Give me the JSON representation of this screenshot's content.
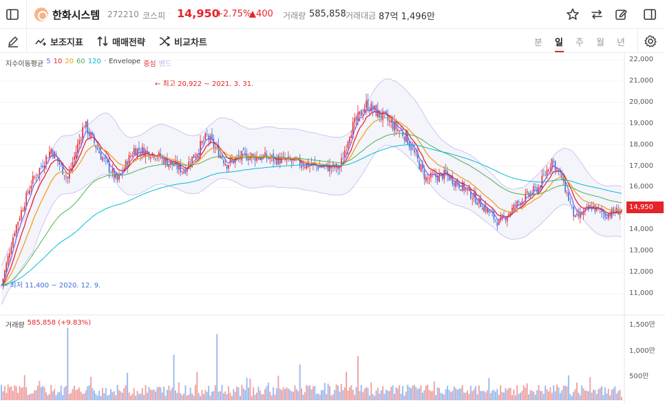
{
  "header": {
    "name": "한화시스템",
    "code": "272210",
    "market": "코스피",
    "price": "14,950",
    "change_pct": "+2.75%",
    "change_abs": "▲400",
    "volume_label": "거래량",
    "volume_value": "585,858",
    "amount_label": "거래대금",
    "amount_value": "87억 1,496만"
  },
  "toolbar": {
    "indicators_label": "보조지표",
    "strategy_label": "매매전략",
    "compare_label": "비교차트",
    "periods": [
      "분",
      "일",
      "주",
      "월",
      "년"
    ],
    "active_period": "일"
  },
  "legend": {
    "ma_label": "지수이동평균",
    "ma_periods": [
      "5",
      "10",
      "20",
      "60",
      "120"
    ],
    "ma_colors": [
      "#7b68ee",
      "#e5242a",
      "#f0a020",
      "#4caf50",
      "#00bcd4"
    ],
    "envelope_label": "Envelope",
    "center_label": "중심",
    "band_label": "밴드"
  },
  "volume_legend": {
    "label": "거래량",
    "value": "585,858 (+9.83%)"
  },
  "price_tag": "14,950",
  "colors": {
    "up": "#e5242a",
    "down": "#3d6fd6",
    "vol_up": "#f0a3a3",
    "vol_down": "#9bbcf0",
    "envelope_fill": "#f4f4fb",
    "envelope_line": "#c9c6ef"
  },
  "chart_data": {
    "type": "candlestick",
    "price_axis": {
      "min": 10000,
      "max": 22000,
      "ticks": [
        "22,000",
        "21,000",
        "20,000",
        "19,000",
        "18,000",
        "17,000",
        "16,000",
        "15,000",
        "14,000",
        "13,000",
        "12,000",
        "11,000"
      ]
    },
    "volume_axis": {
      "ticks": [
        "1,500만",
        "1,000만",
        "500만"
      ]
    },
    "annotations": {
      "high": "← 최고 20,922 ~ 2021. 3. 31.",
      "low": "← 최저 11,400 ~ 2020. 12. 9."
    },
    "price_path": [
      [
        0,
        11400
      ],
      [
        8,
        14000
      ],
      [
        18,
        16200
      ],
      [
        30,
        17800
      ],
      [
        40,
        16400
      ],
      [
        50,
        19000
      ],
      [
        60,
        17500
      ],
      [
        70,
        16300
      ],
      [
        80,
        17800
      ],
      [
        92,
        17600
      ],
      [
        100,
        17200
      ],
      [
        110,
        16800
      ],
      [
        124,
        18400
      ],
      [
        136,
        17100
      ],
      [
        146,
        17500
      ],
      [
        160,
        17400
      ],
      [
        175,
        17200
      ],
      [
        190,
        17000
      ],
      [
        204,
        16900
      ],
      [
        210,
        18600
      ],
      [
        220,
        19900
      ],
      [
        232,
        19200
      ],
      [
        244,
        18400
      ],
      [
        256,
        16400
      ],
      [
        268,
        16600
      ],
      [
        280,
        15900
      ],
      [
        292,
        15000
      ],
      [
        300,
        14300
      ],
      [
        312,
        15300
      ],
      [
        324,
        16000
      ],
      [
        332,
        17300
      ],
      [
        338,
        16400
      ],
      [
        346,
        14500
      ],
      [
        356,
        15100
      ],
      [
        364,
        14700
      ],
      [
        374,
        14950
      ]
    ],
    "n_days": 375,
    "volume_max": 15000000,
    "last_volume": 585858,
    "last_volume_change": "+9.83%"
  }
}
